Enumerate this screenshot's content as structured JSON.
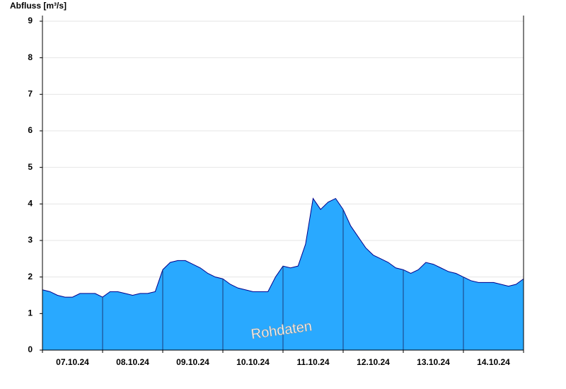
{
  "chart_data": {
    "type": "area",
    "y_label": "Abfluss [m³/s]",
    "annotation": "Rohdaten",
    "categories": [
      null,
      null,
      null,
      null,
      "07.10.24",
      null,
      null,
      null,
      null,
      null,
      null,
      null,
      "08.10.24",
      null,
      null,
      null,
      null,
      null,
      null,
      null,
      "09.10.24",
      null,
      null,
      null,
      null,
      null,
      null,
      null,
      "10.10.24",
      null,
      null,
      null,
      null,
      null,
      null,
      null,
      "11.10.24",
      null,
      null,
      null,
      null,
      null,
      null,
      null,
      "12.10.24",
      null,
      null,
      null,
      null,
      null,
      null,
      null,
      "13.10.24",
      null,
      null,
      null,
      null,
      null,
      null,
      null,
      "14.10.24",
      null,
      null,
      null,
      null
    ],
    "values": [
      1.65,
      1.6,
      1.5,
      1.45,
      1.45,
      1.55,
      1.55,
      1.55,
      1.45,
      1.6,
      1.6,
      1.55,
      1.5,
      1.55,
      1.55,
      1.6,
      2.2,
      2.4,
      2.45,
      2.45,
      2.35,
      2.25,
      2.1,
      2.0,
      1.95,
      1.8,
      1.7,
      1.65,
      1.6,
      1.6,
      1.6,
      2.0,
      2.3,
      2.25,
      2.3,
      2.9,
      4.15,
      3.85,
      4.05,
      4.15,
      3.85,
      3.4,
      3.1,
      2.8,
      2.6,
      2.5,
      2.4,
      2.25,
      2.2,
      2.1,
      2.2,
      2.4,
      2.35,
      2.25,
      2.15,
      2.1,
      2.0,
      1.9,
      1.85,
      1.85,
      1.85,
      1.8,
      1.75,
      1.8,
      1.95
    ],
    "color": "#29a9ff",
    "line_color": "#00008b",
    "ylim": [
      0,
      9
    ],
    "yticks": [
      0,
      1,
      2,
      3,
      4,
      5,
      6,
      7,
      8,
      9
    ],
    "grid": true
  }
}
